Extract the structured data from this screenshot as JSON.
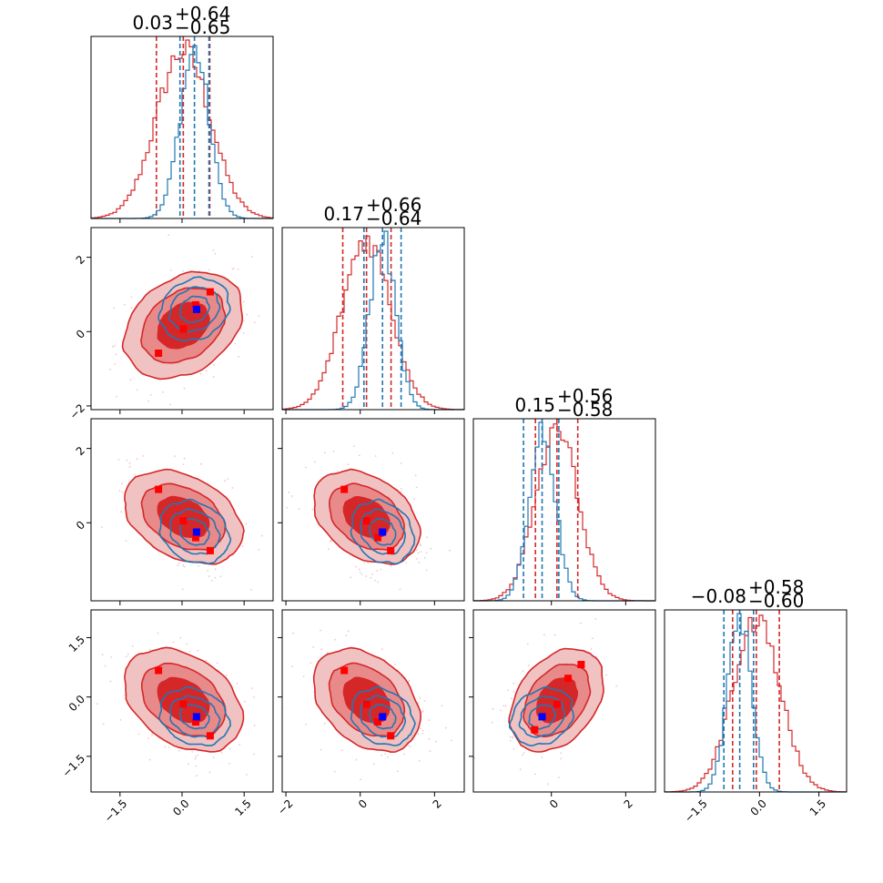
{
  "chart_data": {
    "type": "corner",
    "grid": false,
    "legend": "none",
    "colors": {
      "red": "#d62728",
      "blue": "#1f77b4",
      "red_fill_1": "#f0c2c2",
      "red_fill_2": "#e88a8a",
      "red_fill_3": "#d62728",
      "marker_red": "#ff0000",
      "marker_blue": "#0000ff"
    },
    "parameters": [
      {
        "index": 0,
        "range": [
          -2.2,
          2.2
        ],
        "ticks": [
          -1.5,
          0.0,
          1.5
        ],
        "tick_labels": [
          "−1.5",
          "0.0",
          "1.5"
        ]
      },
      {
        "index": 1,
        "range": [
          -2.1,
          2.8
        ],
        "ticks": [
          -2,
          0,
          2
        ],
        "tick_labels": [
          "−2",
          "0",
          "2"
        ]
      },
      {
        "index": 2,
        "range": [
          -2.1,
          2.8
        ],
        "ticks": [
          0,
          2
        ],
        "tick_labels": [
          "0",
          "2"
        ]
      },
      {
        "index": 3,
        "range": [
          -2.4,
          2.2
        ],
        "ticks": [
          -1.5,
          0.0,
          1.5
        ],
        "tick_labels": [
          "−1.5",
          "0.0",
          "1.5"
        ]
      }
    ],
    "row_ticks": [
      {
        "row": 1,
        "ticks": [
          -2,
          0,
          2
        ],
        "tick_labels": [
          "−2",
          "0",
          "2"
        ]
      },
      {
        "row": 2,
        "ticks": [
          0,
          2
        ],
        "tick_labels": [
          "0",
          "2"
        ]
      },
      {
        "row": 3,
        "ticks": [
          -1.5,
          0.0,
          1.5
        ],
        "tick_labels": [
          "−1.5",
          "0.0",
          "1.5"
        ]
      }
    ],
    "titles": [
      {
        "median": "0.03",
        "plus": "+0.64",
        "minus": "−0.65"
      },
      {
        "median": "0.17",
        "plus": "+0.66",
        "minus": "−0.64"
      },
      {
        "median": "0.15",
        "plus": "+0.56",
        "minus": "−0.58"
      },
      {
        "median": "−0.08",
        "plus": "+0.58",
        "minus": "−0.60"
      }
    ],
    "marginals": [
      {
        "red": {
          "mean": 0.03,
          "sd": 0.65,
          "q": [
            -0.62,
            0.03,
            0.67
          ]
        },
        "blue": {
          "mean": 0.3,
          "sd": 0.35,
          "q": [
            -0.05,
            0.3,
            0.65
          ]
        }
      },
      {
        "red": {
          "mean": 0.17,
          "sd": 0.65,
          "q": [
            -0.47,
            0.17,
            0.83
          ]
        },
        "blue": {
          "mean": 0.6,
          "sd": 0.35,
          "q": [
            0.1,
            0.6,
            1.1
          ]
        }
      },
      {
        "red": {
          "mean": 0.15,
          "sd": 0.57,
          "q": [
            -0.43,
            0.15,
            0.71
          ]
        },
        "blue": {
          "mean": -0.25,
          "sd": 0.35,
          "q": [
            -0.75,
            -0.25,
            0.2
          ]
        }
      },
      {
        "red": {
          "mean": -0.08,
          "sd": 0.59,
          "q": [
            -0.68,
            -0.08,
            0.5
          ]
        },
        "blue": {
          "mean": -0.5,
          "sd": 0.3,
          "q": [
            -0.9,
            -0.5,
            -0.15
          ]
        }
      }
    ],
    "correlations": {
      "0-1": 0.3,
      "0-2": -0.35,
      "1-2": -0.35,
      "0-3": -0.35,
      "1-3": -0.35,
      "2-3": 0.35
    },
    "red_points": [
      0.7,
      1.2,
      0.3,
      0.0,
      -0.4,
      -0.7
    ],
    "blue_point": [
      0.35,
      0.6,
      -0.25,
      -0.5
    ]
  }
}
